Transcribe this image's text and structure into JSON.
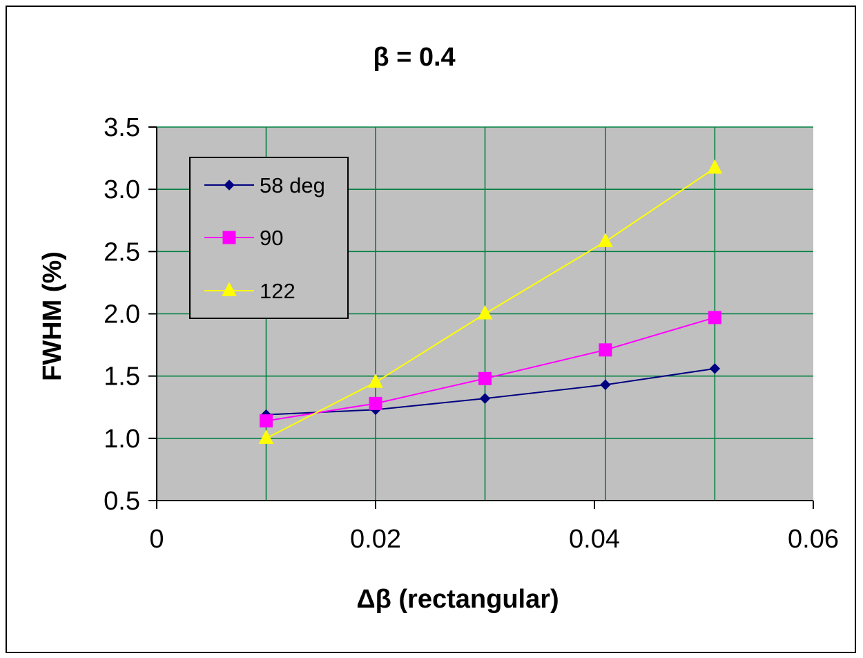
{
  "chart_data": {
    "type": "line",
    "title": "β = 0.4",
    "xlabel": "Δβ (rectangular)",
    "ylabel": "FWHM (%)",
    "xlim": [
      0,
      0.06
    ],
    "ylim": [
      0.5,
      3.5
    ],
    "x_ticks": [
      "0",
      "0.02",
      "0.04",
      "0.06"
    ],
    "y_ticks": [
      "0.5",
      "1.0",
      "1.5",
      "2.0",
      "2.5",
      "3.0",
      "3.5"
    ],
    "grid": true,
    "legend_position": "top-left",
    "plot_background": "#c0c0c0",
    "gridline_color": "#008040",
    "series": [
      {
        "name": "58 deg",
        "marker": "diamond",
        "color": "#000080",
        "x": [
          0.01,
          0.02,
          0.03,
          0.041,
          0.051
        ],
        "y": [
          1.19,
          1.23,
          1.32,
          1.43,
          1.56
        ]
      },
      {
        "name": "90",
        "marker": "square",
        "color": "#ff00ff",
        "x": [
          0.01,
          0.02,
          0.03,
          0.041,
          0.051
        ],
        "y": [
          1.14,
          1.28,
          1.48,
          1.71,
          1.97
        ]
      },
      {
        "name": "122",
        "marker": "triangle",
        "color": "#ffff00",
        "x": [
          0.01,
          0.02,
          0.03,
          0.041,
          0.051
        ],
        "y": [
          1.0,
          1.45,
          2.0,
          2.58,
          3.17
        ]
      }
    ]
  }
}
